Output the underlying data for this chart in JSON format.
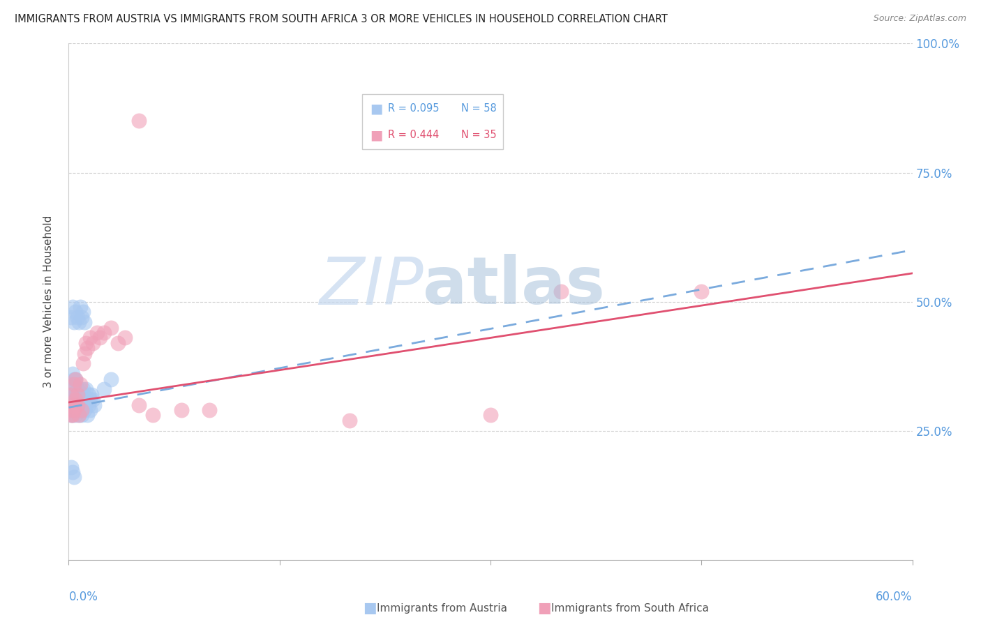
{
  "title": "IMMIGRANTS FROM AUSTRIA VS IMMIGRANTS FROM SOUTH AFRICA 3 OR MORE VEHICLES IN HOUSEHOLD CORRELATION CHART",
  "source": "Source: ZipAtlas.com",
  "ylabel": "3 or more Vehicles in Household",
  "xlim": [
    0.0,
    0.6
  ],
  "ylim": [
    0.0,
    1.0
  ],
  "legend_r_austria": "R = 0.095",
  "legend_n_austria": "N = 58",
  "legend_r_sa": "R = 0.444",
  "legend_n_sa": "N = 35",
  "austria_color": "#a8c8f0",
  "sa_color": "#f0a0b8",
  "austria_line_color": "#7aaadd",
  "sa_line_color": "#e05070",
  "right_tick_color": "#5599dd",
  "title_fontsize": 10.5,
  "source_fontsize": 9,
  "austria_x": [
    0.001,
    0.001,
    0.002,
    0.002,
    0.002,
    0.003,
    0.003,
    0.003,
    0.003,
    0.004,
    0.004,
    0.004,
    0.005,
    0.005,
    0.005,
    0.005,
    0.006,
    0.006,
    0.006,
    0.007,
    0.007,
    0.007,
    0.008,
    0.008,
    0.008,
    0.009,
    0.009,
    0.01,
    0.01,
    0.01,
    0.011,
    0.011,
    0.012,
    0.012,
    0.013,
    0.013,
    0.014,
    0.014,
    0.015,
    0.015,
    0.002,
    0.003,
    0.004,
    0.005,
    0.006,
    0.007,
    0.008,
    0.009,
    0.01,
    0.011,
    0.002,
    0.003,
    0.004,
    0.016,
    0.017,
    0.018,
    0.025,
    0.03
  ],
  "austria_y": [
    0.32,
    0.3,
    0.34,
    0.28,
    0.32,
    0.36,
    0.3,
    0.28,
    0.32,
    0.35,
    0.29,
    0.33,
    0.3,
    0.28,
    0.32,
    0.35,
    0.31,
    0.29,
    0.33,
    0.3,
    0.28,
    0.32,
    0.29,
    0.33,
    0.31,
    0.3,
    0.28,
    0.32,
    0.3,
    0.33,
    0.29,
    0.31,
    0.3,
    0.33,
    0.28,
    0.31,
    0.3,
    0.32,
    0.29,
    0.31,
    0.47,
    0.49,
    0.46,
    0.48,
    0.47,
    0.46,
    0.49,
    0.47,
    0.48,
    0.46,
    0.18,
    0.17,
    0.16,
    0.32,
    0.31,
    0.3,
    0.33,
    0.35
  ],
  "sa_x": [
    0.001,
    0.002,
    0.002,
    0.003,
    0.003,
    0.004,
    0.004,
    0.005,
    0.005,
    0.006,
    0.006,
    0.007,
    0.008,
    0.009,
    0.01,
    0.011,
    0.012,
    0.013,
    0.015,
    0.017,
    0.02,
    0.022,
    0.025,
    0.03,
    0.035,
    0.04,
    0.05,
    0.35,
    0.45,
    0.3,
    0.2,
    0.1,
    0.06,
    0.08,
    0.05
  ],
  "sa_y": [
    0.29,
    0.28,
    0.32,
    0.3,
    0.28,
    0.34,
    0.29,
    0.31,
    0.35,
    0.3,
    0.32,
    0.28,
    0.34,
    0.29,
    0.38,
    0.4,
    0.42,
    0.41,
    0.43,
    0.42,
    0.44,
    0.43,
    0.44,
    0.45,
    0.42,
    0.43,
    0.3,
    0.52,
    0.52,
    0.28,
    0.27,
    0.29,
    0.28,
    0.29,
    0.85
  ]
}
